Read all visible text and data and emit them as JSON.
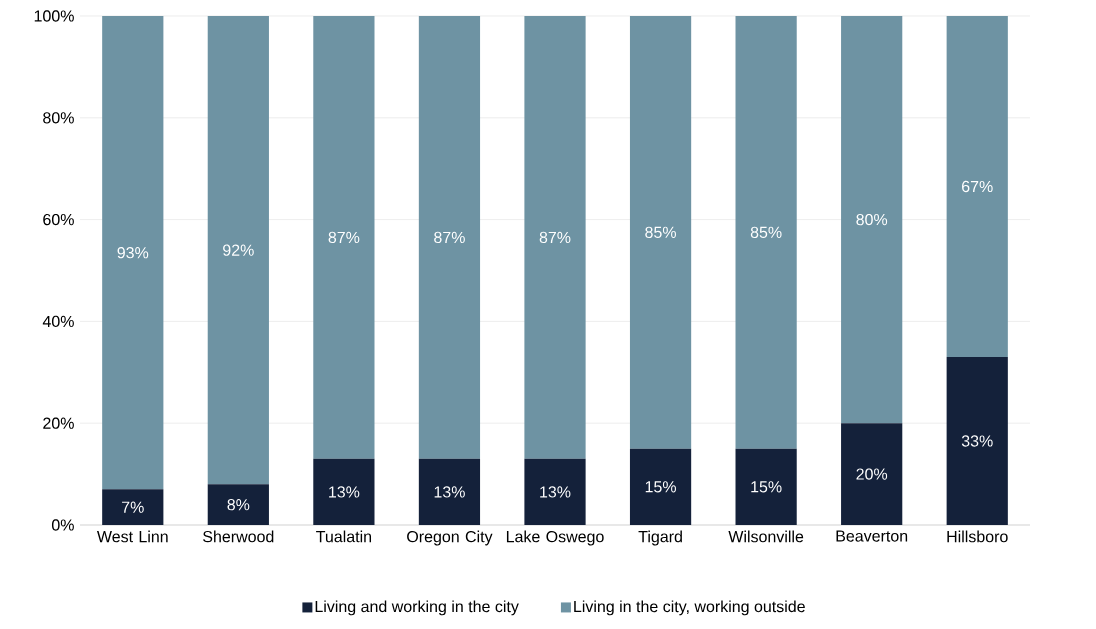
{
  "chart_data": {
    "type": "bar",
    "stacked": true,
    "categories": [
      "West Linn",
      "Sherwood",
      "Tualatin",
      "Oregon City",
      "Lake Oswego",
      "Tigard",
      "Wilsonville",
      "Beaverton",
      "Hillsboro"
    ],
    "series": [
      {
        "name": "Living and working in the city",
        "color": "#14213a",
        "values": [
          7,
          8,
          13,
          13,
          13,
          15,
          15,
          20,
          33
        ],
        "value_labels": [
          "7%",
          "8%",
          "13%",
          "13%",
          "13%",
          "15%",
          "15%",
          "20%",
          "33%"
        ]
      },
      {
        "name": "Living in the city, working outside",
        "color": "#6e93a3",
        "values": [
          93,
          92,
          87,
          87,
          87,
          85,
          85,
          80,
          67
        ],
        "value_labels": [
          "93%",
          "92%",
          "87%",
          "87%",
          "87%",
          "85%",
          "85%",
          "80%",
          "67%"
        ]
      }
    ],
    "ylim": [
      0,
      100
    ],
    "yticks": [
      {
        "value": 0,
        "label": "0%"
      },
      {
        "value": 20,
        "label": "20%"
      },
      {
        "value": 40,
        "label": "40%"
      },
      {
        "value": 60,
        "label": "60%"
      },
      {
        "value": 80,
        "label": "80%"
      },
      {
        "value": 100,
        "label": "100%"
      }
    ],
    "grid": "y",
    "legend": "bottom"
  }
}
